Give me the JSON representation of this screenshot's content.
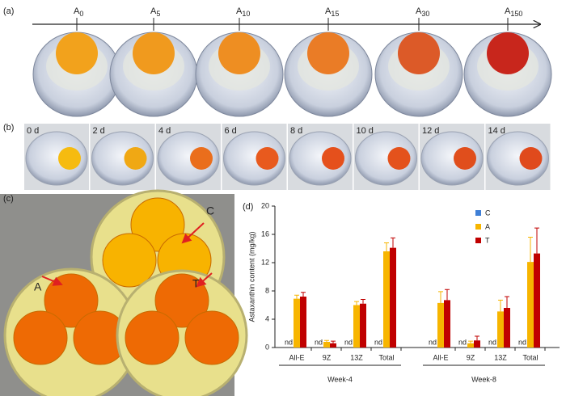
{
  "panel_a": {
    "label": "(a)",
    "markers": [
      {
        "letter": "A",
        "subscript": "0"
      },
      {
        "letter": "A",
        "subscript": "5"
      },
      {
        "letter": "A",
        "subscript": "10"
      },
      {
        "letter": "A",
        "subscript": "15"
      },
      {
        "letter": "A",
        "subscript": "30"
      },
      {
        "letter": "A",
        "subscript": "150"
      }
    ]
  },
  "panel_b": {
    "label": "(b)",
    "days": [
      "0 d",
      "2 d",
      "4 d",
      "6 d",
      "8 d",
      "10 d",
      "12 d",
      "14 d"
    ]
  },
  "panel_c": {
    "label": "(c)",
    "groups": [
      "C",
      "A",
      "T"
    ]
  },
  "panel_d": {
    "label": "(d)"
  },
  "chart_data": {
    "type": "bar",
    "y_label": "Astaxanthin content (mg/kg)",
    "categories": [
      "All-E",
      "9Z",
      "13Z",
      "Total",
      "All-E",
      "9Z",
      "13Z",
      "Total"
    ],
    "groups": [
      "Week-4",
      "Week-8"
    ],
    "ylim": [
      0,
      20
    ],
    "yticks": [
      0,
      4,
      8,
      12,
      16,
      20
    ],
    "series": [
      {
        "name": "C",
        "color": "#3f7fd6",
        "values": [
          null,
          null,
          null,
          null,
          null,
          null,
          null,
          null
        ],
        "value_labels": [
          "nd",
          "nd",
          "nd",
          "nd",
          "nd",
          "nd",
          "nd",
          "nd"
        ]
      },
      {
        "name": "A",
        "color": "#f7b500",
        "values": [
          6.9,
          0.8,
          6.0,
          13.6,
          6.3,
          0.6,
          5.1,
          12.1
        ],
        "errors": [
          0.5,
          0.2,
          0.5,
          1.2,
          1.6,
          0.3,
          1.6,
          3.5
        ]
      },
      {
        "name": "T",
        "color": "#c00000",
        "values": [
          7.2,
          0.6,
          6.2,
          14.1,
          6.7,
          1.0,
          5.6,
          13.3
        ],
        "errors": [
          0.6,
          0.3,
          0.6,
          1.4,
          1.5,
          0.6,
          1.6,
          3.6
        ]
      }
    ],
    "legend": "top-right"
  }
}
